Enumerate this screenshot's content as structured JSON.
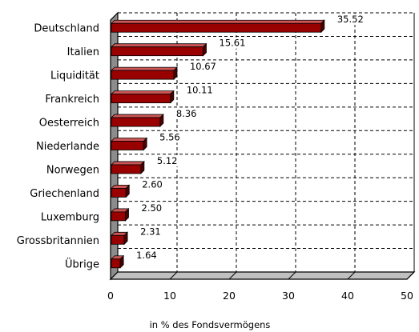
{
  "chart_data": {
    "type": "bar",
    "orientation": "horizontal",
    "style": "3d",
    "categories": [
      "Deutschland",
      "Italien",
      "Liquidität",
      "Frankreich",
      "Oesterreich",
      "Niederlande",
      "Norwegen",
      "Griechenland",
      "Luxemburg",
      "Grossbritannien",
      "Übrige"
    ],
    "values": [
      35.52,
      15.61,
      10.67,
      10.11,
      8.36,
      5.56,
      5.12,
      2.6,
      2.5,
      2.31,
      1.64
    ],
    "value_labels": [
      "35.52",
      "15.61",
      "10.67",
      "10.11",
      "8.36",
      "5.56",
      "5.12",
      "2.60",
      "2.50",
      "2.31",
      "1.64"
    ],
    "xlabel": "in % des Fondsvermögens",
    "ylabel": "",
    "xlim": [
      0,
      50
    ],
    "xticks": [
      "0",
      "10",
      "20",
      "30",
      "40",
      "50"
    ],
    "grid": "dashed",
    "legend": "none",
    "colors": {
      "bar": "#990000",
      "bar_side": "#4d0000",
      "bar_top": "#cc5555",
      "floor": "#c0c0c0",
      "wall": "#8c8c8c"
    }
  }
}
